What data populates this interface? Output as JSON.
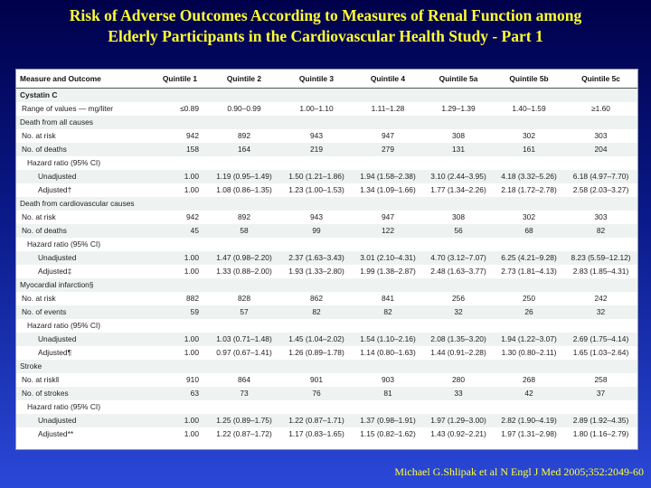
{
  "title": {
    "line1": "Risk of Adverse Outcomes According to Measures of Renal Function among",
    "line2": "Elderly Participants in the Cardiovascular Health Study - Part 1"
  },
  "table": {
    "headers": [
      "Measure and Outcome",
      "Quintile 1",
      "Quintile 2",
      "Quintile 3",
      "Quintile 4",
      "Quintile 5a",
      "Quintile 5b",
      "Quintile 5c"
    ],
    "rows": [
      {
        "label": "Cystatin C",
        "level": 0,
        "section": true,
        "shade": true,
        "values": [
          "",
          "",
          "",
          "",
          "",
          "",
          ""
        ]
      },
      {
        "label": "Range of values — mg/liter",
        "level": 1,
        "shade": false,
        "values": [
          "≤0.89",
          "0.90–0.99",
          "1.00–1.10",
          "1.11–1.28",
          "1.29–1.39",
          "1.40–1.59",
          "≥1.60"
        ]
      },
      {
        "label": "Death from all causes",
        "level": 0,
        "shade": true,
        "values": [
          "",
          "",
          "",
          "",
          "",
          "",
          ""
        ]
      },
      {
        "label": "No. at risk",
        "level": 1,
        "shade": false,
        "values": [
          "942",
          "892",
          "943",
          "947",
          "308",
          "302",
          "303"
        ]
      },
      {
        "label": "No. of deaths",
        "level": 1,
        "shade": true,
        "values": [
          "158",
          "164",
          "219",
          "279",
          "131",
          "161",
          "204"
        ]
      },
      {
        "label": "Hazard ratio (95% CI)",
        "level": 2,
        "shade": false,
        "values": [
          "",
          "",
          "",
          "",
          "",
          "",
          ""
        ]
      },
      {
        "label": "Unadjusted",
        "level": 3,
        "shade": true,
        "values": [
          "1.00",
          "1.19 (0.95–1.49)",
          "1.50 (1.21–1.86)",
          "1.94 (1.58–2.38)",
          "3.10 (2.44–3.95)",
          "4.18 (3.32–5.26)",
          "6.18 (4.97–7.70)"
        ]
      },
      {
        "label": "Adjusted†",
        "level": 3,
        "shade": false,
        "values": [
          "1.00",
          "1.08 (0.86–1.35)",
          "1.23 (1.00–1.53)",
          "1.34 (1.09–1.66)",
          "1.77 (1.34–2.26)",
          "2.18 (1.72–2.78)",
          "2.58 (2.03–3.27)"
        ]
      },
      {
        "label": "Death from cardiovascular causes",
        "level": 0,
        "shade": true,
        "values": [
          "",
          "",
          "",
          "",
          "",
          "",
          ""
        ]
      },
      {
        "label": "No. at risk",
        "level": 1,
        "shade": false,
        "values": [
          "942",
          "892",
          "943",
          "947",
          "308",
          "302",
          "303"
        ]
      },
      {
        "label": "No. of deaths",
        "level": 1,
        "shade": true,
        "values": [
          "45",
          "58",
          "99",
          "122",
          "56",
          "68",
          "82"
        ]
      },
      {
        "label": "Hazard ratio (95% CI)",
        "level": 2,
        "shade": false,
        "values": [
          "",
          "",
          "",
          "",
          "",
          "",
          ""
        ]
      },
      {
        "label": "Unadjusted",
        "level": 3,
        "shade": true,
        "values": [
          "1.00",
          "1.47 (0.98–2.20)",
          "2.37 (1.63–3.43)",
          "3.01 (2.10–4.31)",
          "4.70 (3.12–7.07)",
          "6.25 (4.21–9.28)",
          "8.23 (5.59–12.12)"
        ]
      },
      {
        "label": "Adjusted‡",
        "level": 3,
        "shade": false,
        "values": [
          "1.00",
          "1.33 (0.88–2.00)",
          "1.93 (1.33–2.80)",
          "1.99 (1.38–2.87)",
          "2.48 (1.63–3.77)",
          "2.73 (1.81–4.13)",
          "2.83 (1.85–4.31)"
        ]
      },
      {
        "label": "Myocardial infarction§",
        "level": 0,
        "shade": true,
        "values": [
          "",
          "",
          "",
          "",
          "",
          "",
          ""
        ]
      },
      {
        "label": "No. at risk",
        "level": 1,
        "shade": false,
        "values": [
          "882",
          "828",
          "862",
          "841",
          "256",
          "250",
          "242"
        ]
      },
      {
        "label": "No. of events",
        "level": 1,
        "shade": true,
        "values": [
          "59",
          "57",
          "82",
          "82",
          "32",
          "26",
          "32"
        ]
      },
      {
        "label": "Hazard ratio (95% CI)",
        "level": 2,
        "shade": false,
        "values": [
          "",
          "",
          "",
          "",
          "",
          "",
          ""
        ]
      },
      {
        "label": "Unadjusted",
        "level": 3,
        "shade": true,
        "values": [
          "1.00",
          "1.03 (0.71–1.48)",
          "1.45 (1.04–2.02)",
          "1.54 (1.10–2.16)",
          "2.08 (1.35–3.20)",
          "1.94 (1.22–3.07)",
          "2.69 (1.75–4.14)"
        ]
      },
      {
        "label": "Adjusted¶",
        "level": 3,
        "shade": false,
        "values": [
          "1.00",
          "0.97 (0.67–1.41)",
          "1.26 (0.89–1.78)",
          "1.14 (0.80–1.63)",
          "1.44 (0.91–2.28)",
          "1.30 (0.80–2.11)",
          "1.65 (1.03–2.64)"
        ]
      },
      {
        "label": "Stroke",
        "level": 0,
        "shade": true,
        "values": [
          "",
          "",
          "",
          "",
          "",
          "",
          ""
        ]
      },
      {
        "label": "No. at risk‖",
        "level": 1,
        "shade": false,
        "values": [
          "910",
          "864",
          "901",
          "903",
          "280",
          "268",
          "258"
        ]
      },
      {
        "label": "No. of strokes",
        "level": 1,
        "shade": true,
        "values": [
          "63",
          "73",
          "76",
          "81",
          "33",
          "42",
          "37"
        ]
      },
      {
        "label": "Hazard ratio (95% CI)",
        "level": 2,
        "shade": false,
        "values": [
          "",
          "",
          "",
          "",
          "",
          "",
          ""
        ]
      },
      {
        "label": "Unadjusted",
        "level": 3,
        "shade": true,
        "values": [
          "1.00",
          "1.25 (0.89–1.75)",
          "1.22 (0.87–1.71)",
          "1.37 (0.98–1.91)",
          "1.97 (1.29–3.00)",
          "2.82 (1.90–4.19)",
          "2.89 (1.92–4.35)"
        ]
      },
      {
        "label": "Adjusted**",
        "level": 3,
        "shade": false,
        "values": [
          "1.00",
          "1.22 (0.87–1.72)",
          "1.17 (0.83–1.65)",
          "1.15 (0.82–1.62)",
          "1.43 (0.92–2.21)",
          "1.97 (1.31–2.98)",
          "1.80 (1.16–2.79)"
        ]
      }
    ]
  },
  "citation": "Michael G.Shlipak et al N Engl J Med 2005;352:2049-60"
}
